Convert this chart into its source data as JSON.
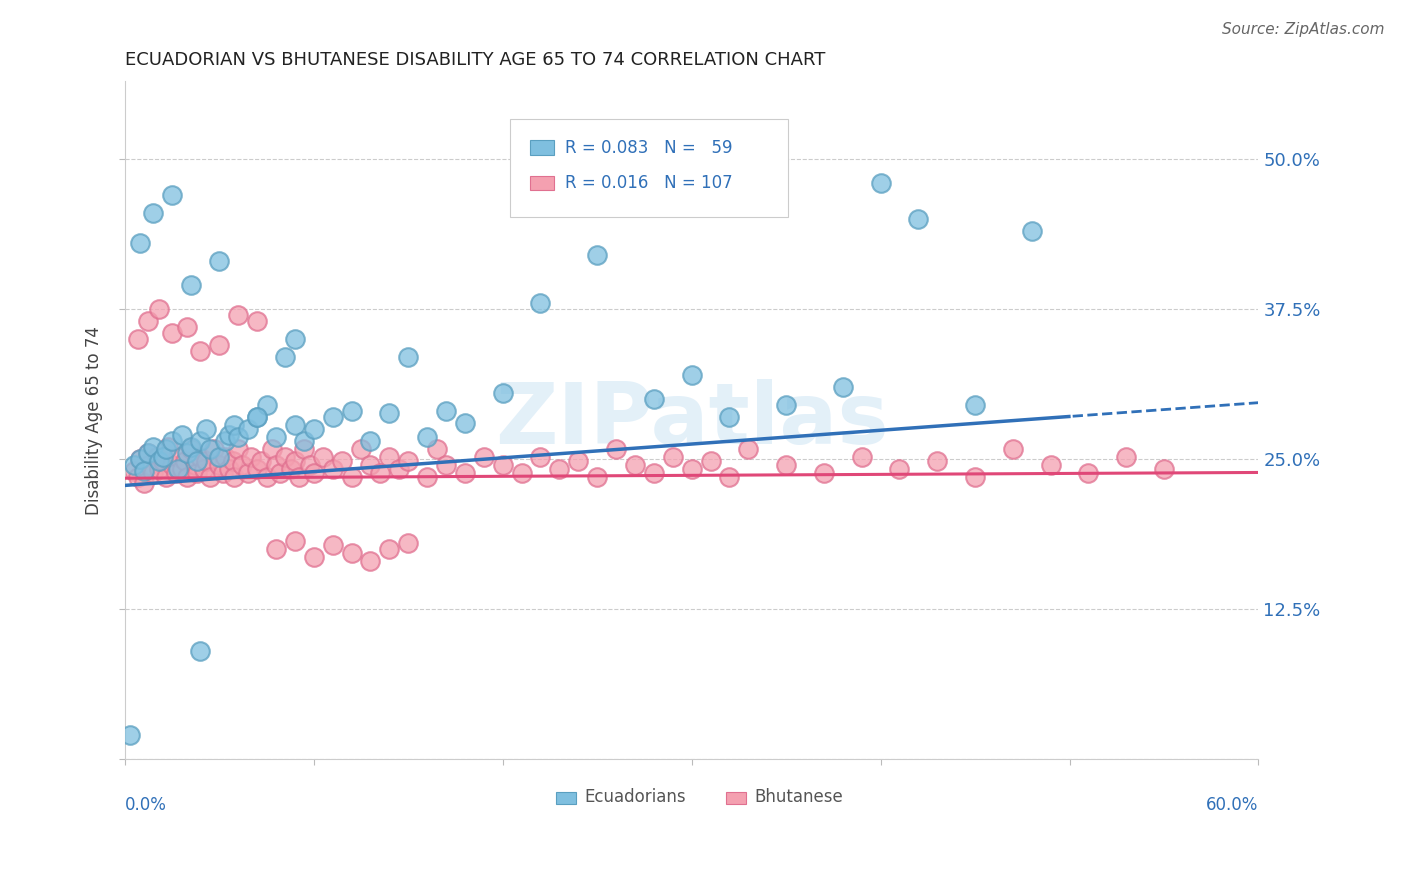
{
  "title": "ECUADORIAN VS BHUTANESE DISABILITY AGE 65 TO 74 CORRELATION CHART",
  "source": "Source: ZipAtlas.com",
  "ylabel": "Disability Age 65 to 74",
  "xlim": [
    0.0,
    0.6
  ],
  "ylim": [
    0.0,
    0.565
  ],
  "yticks": [
    0.0,
    0.125,
    0.25,
    0.375,
    0.5
  ],
  "ytick_labels": [
    "",
    "12.5%",
    "25.0%",
    "37.5%",
    "50.0%"
  ],
  "ecuadorian_color": "#7fbfdf",
  "ecuadorian_edge": "#5a9fc0",
  "bhutanese_color": "#f4a0b0",
  "bhutanese_edge": "#e07090",
  "line_color_blue": "#3070b8",
  "line_color_pink": "#e04878",
  "background_color": "#ffffff",
  "watermark": "ZIPatlas",
  "legend_r1": "R = 0.083",
  "legend_n1": "N =  59",
  "legend_r2": "R = 0.016",
  "legend_n2": "N = 107",
  "ecu_x": [
    0.005,
    0.008,
    0.01,
    0.012,
    0.015,
    0.018,
    0.02,
    0.022,
    0.025,
    0.028,
    0.03,
    0.033,
    0.035,
    0.038,
    0.04,
    0.043,
    0.045,
    0.05,
    0.053,
    0.055,
    0.058,
    0.06,
    0.065,
    0.07,
    0.075,
    0.08,
    0.085,
    0.09,
    0.095,
    0.1,
    0.11,
    0.12,
    0.13,
    0.14,
    0.15,
    0.16,
    0.17,
    0.18,
    0.2,
    0.22,
    0.25,
    0.28,
    0.3,
    0.32,
    0.35,
    0.38,
    0.4,
    0.42,
    0.45,
    0.48,
    0.008,
    0.015,
    0.025,
    0.035,
    0.05,
    0.07,
    0.09,
    0.04,
    0.003
  ],
  "ecu_y": [
    0.245,
    0.25,
    0.24,
    0.255,
    0.26,
    0.248,
    0.252,
    0.258,
    0.265,
    0.242,
    0.27,
    0.255,
    0.26,
    0.248,
    0.265,
    0.275,
    0.258,
    0.252,
    0.265,
    0.27,
    0.278,
    0.268,
    0.275,
    0.285,
    0.295,
    0.268,
    0.335,
    0.278,
    0.265,
    0.275,
    0.285,
    0.29,
    0.265,
    0.288,
    0.335,
    0.268,
    0.29,
    0.28,
    0.305,
    0.38,
    0.42,
    0.3,
    0.32,
    0.285,
    0.295,
    0.31,
    0.48,
    0.45,
    0.295,
    0.44,
    0.43,
    0.455,
    0.47,
    0.395,
    0.415,
    0.285,
    0.35,
    0.09,
    0.02
  ],
  "bhu_x": [
    0.005,
    0.007,
    0.008,
    0.01,
    0.012,
    0.013,
    0.015,
    0.017,
    0.018,
    0.02,
    0.022,
    0.023,
    0.025,
    0.027,
    0.028,
    0.03,
    0.032,
    0.033,
    0.035,
    0.037,
    0.038,
    0.04,
    0.042,
    0.043,
    0.045,
    0.047,
    0.05,
    0.052,
    0.053,
    0.055,
    0.057,
    0.058,
    0.06,
    0.062,
    0.065,
    0.067,
    0.07,
    0.072,
    0.075,
    0.078,
    0.08,
    0.082,
    0.085,
    0.088,
    0.09,
    0.092,
    0.095,
    0.098,
    0.1,
    0.105,
    0.11,
    0.115,
    0.12,
    0.125,
    0.13,
    0.135,
    0.14,
    0.145,
    0.15,
    0.16,
    0.165,
    0.17,
    0.18,
    0.19,
    0.2,
    0.21,
    0.22,
    0.23,
    0.24,
    0.25,
    0.26,
    0.27,
    0.28,
    0.29,
    0.3,
    0.31,
    0.32,
    0.33,
    0.35,
    0.37,
    0.39,
    0.41,
    0.43,
    0.45,
    0.47,
    0.49,
    0.51,
    0.53,
    0.55,
    0.007,
    0.012,
    0.018,
    0.025,
    0.033,
    0.04,
    0.05,
    0.06,
    0.07,
    0.08,
    0.09,
    0.1,
    0.11,
    0.12,
    0.13,
    0.14,
    0.15
  ],
  "bhu_y": [
    0.24,
    0.235,
    0.25,
    0.23,
    0.255,
    0.245,
    0.238,
    0.252,
    0.242,
    0.248,
    0.235,
    0.26,
    0.245,
    0.238,
    0.252,
    0.242,
    0.248,
    0.235,
    0.258,
    0.245,
    0.238,
    0.252,
    0.242,
    0.248,
    0.235,
    0.258,
    0.245,
    0.238,
    0.252,
    0.242,
    0.248,
    0.235,
    0.258,
    0.245,
    0.238,
    0.252,
    0.242,
    0.248,
    0.235,
    0.258,
    0.245,
    0.238,
    0.252,
    0.242,
    0.248,
    0.235,
    0.258,
    0.245,
    0.238,
    0.252,
    0.242,
    0.248,
    0.235,
    0.258,
    0.245,
    0.238,
    0.252,
    0.242,
    0.248,
    0.235,
    0.258,
    0.245,
    0.238,
    0.252,
    0.245,
    0.238,
    0.252,
    0.242,
    0.248,
    0.235,
    0.258,
    0.245,
    0.238,
    0.252,
    0.242,
    0.248,
    0.235,
    0.258,
    0.245,
    0.238,
    0.252,
    0.242,
    0.248,
    0.235,
    0.258,
    0.245,
    0.238,
    0.252,
    0.242,
    0.35,
    0.365,
    0.375,
    0.355,
    0.36,
    0.34,
    0.345,
    0.37,
    0.365,
    0.175,
    0.182,
    0.168,
    0.178,
    0.172,
    0.165,
    0.175,
    0.18
  ]
}
